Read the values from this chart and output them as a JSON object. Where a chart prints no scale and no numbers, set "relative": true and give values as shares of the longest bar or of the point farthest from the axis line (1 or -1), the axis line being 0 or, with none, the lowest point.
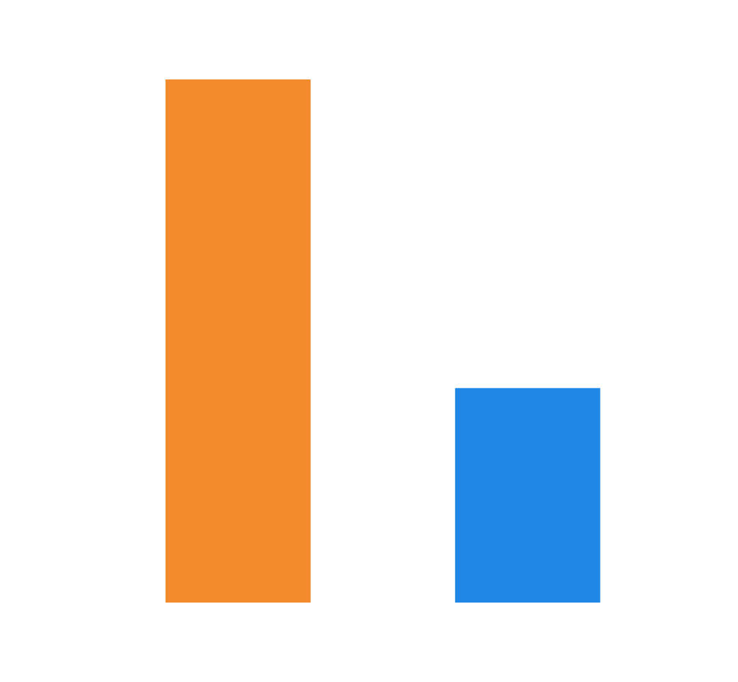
{
  "chart_data": {
    "type": "bar",
    "relative": true,
    "categories": [
      null,
      null
    ],
    "values": [
      1,
      0.41
    ],
    "colors": [
      "#f48a2e",
      "#1f87e5"
    ]
  }
}
